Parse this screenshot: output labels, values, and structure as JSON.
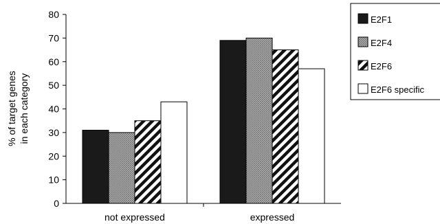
{
  "chart_data": {
    "type": "bar",
    "categories": [
      "not expressed",
      "expressed"
    ],
    "ylabel_lines": [
      "% of target genes",
      "in each category"
    ],
    "ylim": [
      0,
      80
    ],
    "yticks": [
      0,
      10,
      20,
      30,
      40,
      50,
      60,
      70,
      80
    ],
    "grid": false,
    "legend_position": "top-right",
    "series": [
      {
        "name": "E2F1",
        "values": [
          31,
          69
        ],
        "fill": "#1a1a1a",
        "pattern": "solid"
      },
      {
        "name": "E2F4",
        "values": [
          30,
          70
        ],
        "fill": "#9a9a9a",
        "pattern": "dotted"
      },
      {
        "name": "E2F6",
        "values": [
          35,
          65
        ],
        "fill": "#ffffff",
        "pattern": "diagonal-stripes"
      },
      {
        "name": "E2F6 specific",
        "values": [
          43,
          57
        ],
        "fill": "#ffffff",
        "pattern": "solid"
      }
    ]
  }
}
